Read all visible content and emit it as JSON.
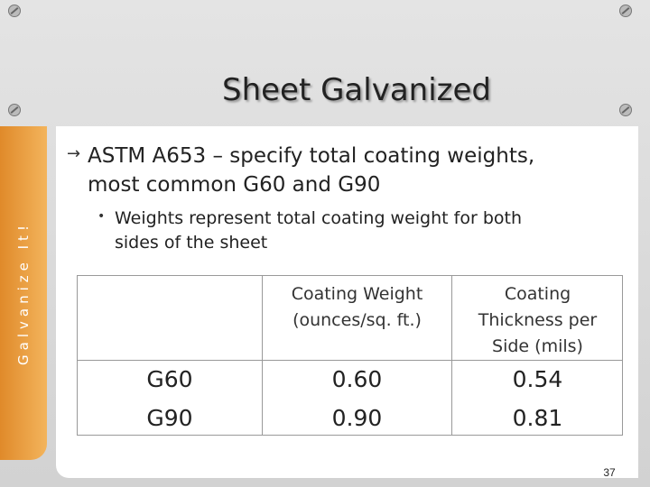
{
  "title": "Sheet Galvanized",
  "sidebar_label": "Galvanize It!",
  "bullets": [
    {
      "lines": [
        "ASTM A653 – specify total coating weights,",
        "most common G60 and G90"
      ]
    },
    {
      "lines": [
        "Weights represent total coating weight for both",
        "sides of the sheet"
      ]
    }
  ],
  "table": {
    "header": [
      [
        "Coating Weight",
        "(ounces/sq. ft.)"
      ],
      [
        "Coating",
        "Thickness per",
        "Side (mils)"
      ]
    ],
    "rows": [
      [
        "G60",
        "0.60",
        "0.54"
      ],
      [
        "G90",
        "0.90",
        "0.81"
      ]
    ]
  },
  "page_number": "37"
}
